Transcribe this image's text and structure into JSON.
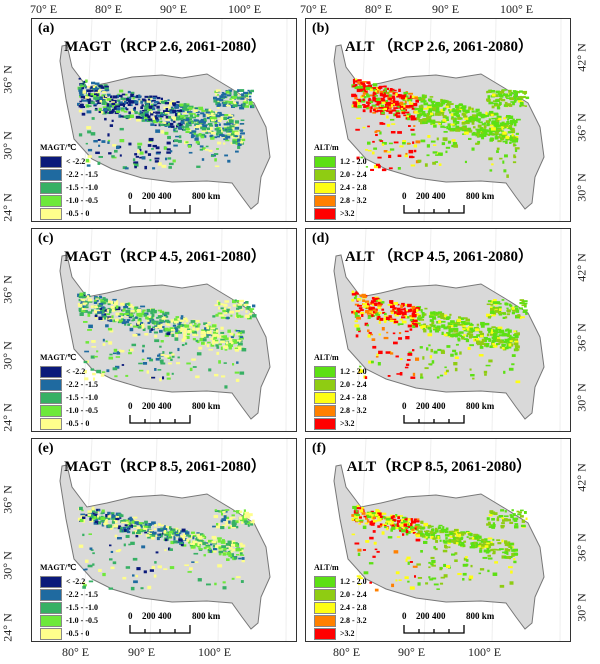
{
  "top_axis": [
    "70° E",
    "80° E",
    "90° E",
    "100° E",
    "70° E",
    "80° E",
    "90° E",
    "100° E"
  ],
  "bottom_axis": [
    "80° E",
    "90° E",
    "100° E",
    "80° E",
    "90° E",
    "100° E"
  ],
  "left_lat": [
    "36° N",
    "30° N",
    "24° N"
  ],
  "right_lat": [
    "42° N",
    "36° N",
    "30° N"
  ],
  "scale_bar": {
    "n0": "0",
    "n1": "200",
    "n2": "400",
    "n3": "800 km"
  },
  "magt_legend": {
    "title": "MAGT/℃",
    "items": [
      {
        "label": "< -2.2",
        "color": "#0b1a7a"
      },
      {
        "label": "-2.2 - -1.5",
        "color": "#1f6aa0"
      },
      {
        "label": "-1.5 - -1.0",
        "color": "#37b064"
      },
      {
        "label": "-1.0 - -0.5",
        "color": "#6ee83a"
      },
      {
        "label": "-0.5 - 0",
        "color": "#fefe8c"
      }
    ]
  },
  "alt_legend": {
    "title": "ALT/m",
    "items": [
      {
        "label": "1.2 - 2.0",
        "color": "#5ce014"
      },
      {
        "label": "2.0 - 2.4",
        "color": "#8fcc12"
      },
      {
        "label": "2.4 - 2.8",
        "color": "#fefe14"
      },
      {
        "label": "2.8 - 3.2",
        "color": "#ff8000"
      },
      {
        "label": ">3.2",
        "color": "#ff0000"
      }
    ]
  },
  "panels": [
    {
      "label": "(a)",
      "title": "MAGT（RCP 2.6,  2061-2080）",
      "type": "magt"
    },
    {
      "label": "(b)",
      "title": "ALT （RCP 2.6,  2061-2080）",
      "type": "alt"
    },
    {
      "label": "(c)",
      "title": "MAGT（RCP 4.5, 2061-2080）",
      "type": "magt"
    },
    {
      "label": "(d)",
      "title": "ALT （RCP 4.5, 2061-2080）",
      "type": "alt"
    },
    {
      "label": "(e)",
      "title": "MAGT（RCP 8.5, 2061-2080）",
      "type": "magt"
    },
    {
      "label": "(f)",
      "title": "ALT（RCP 8.5, 2061-2080）",
      "type": "alt"
    }
  ]
}
